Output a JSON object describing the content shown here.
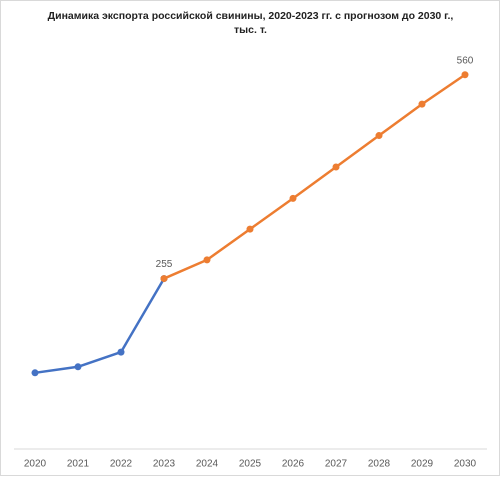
{
  "chart_data": {
    "type": "line",
    "title": "Динамика экспорта российской свинины, 2020-2023 гг. с прогнозом до 2030 г., тыс. т.",
    "categories": [
      "2020",
      "2021",
      "2022",
      "2023",
      "2024",
      "2025",
      "2026",
      "2027",
      "2028",
      "2029",
      "2030"
    ],
    "series": [
      {
        "color": "#4472c4",
        "values": [
          114,
          123,
          145,
          255,
          null,
          null,
          null,
          null,
          null,
          null,
          null
        ]
      },
      {
        "color": "#ed7d31",
        "values": [
          null,
          null,
          null,
          255,
          283,
          329,
          375,
          422,
          469,
          516,
          560
        ]
      }
    ],
    "ylim": [
      0,
      600
    ],
    "grid": false
  }
}
